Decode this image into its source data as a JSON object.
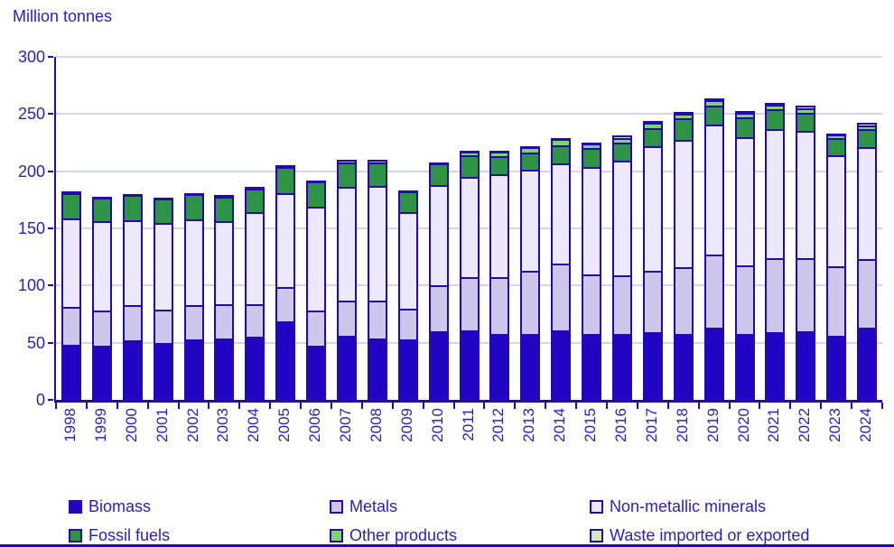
{
  "title": "Million tonnes",
  "colors": {
    "text": "#2d1dc0",
    "axis": "#2408b0",
    "grid": "#d7d4ee",
    "background": "#ffffff",
    "bar_border": "#2408b0"
  },
  "chart_data": {
    "type": "bar",
    "stacked": true,
    "title": "Million tonnes",
    "xlabel": "",
    "ylabel": "Million tonnes",
    "ylim": [
      0,
      300
    ],
    "yticks": [
      0,
      50,
      100,
      150,
      200,
      250,
      300
    ],
    "grid": true,
    "legend_position": "bottom",
    "categories": [
      "1998",
      "1999",
      "2000",
      "2001",
      "2002",
      "2003",
      "2004",
      "2005",
      "2006",
      "2007",
      "2008",
      "2009",
      "2010",
      "2011",
      "2012",
      "2013",
      "2014",
      "2015",
      "2016",
      "2017",
      "2018",
      "2019",
      "2020",
      "2021",
      "2022",
      "2023",
      "2024"
    ],
    "series": [
      {
        "name": "Biomass",
        "color": "#2306c4",
        "values": [
          48,
          47,
          52,
          50,
          53,
          54,
          55,
          69,
          47,
          56,
          54,
          53,
          60,
          61,
          58,
          58,
          61,
          58,
          58,
          59,
          58,
          63,
          58,
          59,
          60,
          56,
          63
        ]
      },
      {
        "name": "Metals",
        "color": "#cdc7ec",
        "values": [
          33,
          31,
          31,
          29,
          30,
          30,
          29,
          30,
          31,
          31,
          33,
          27,
          40,
          46,
          49,
          55,
          58,
          52,
          51,
          54,
          58,
          64,
          60,
          65,
          64,
          61,
          60
        ]
      },
      {
        "name": "Non-metallic minerals",
        "color": "#ebe9fb",
        "values": [
          78,
          78,
          74,
          76,
          75,
          72,
          80,
          82,
          91,
          99,
          100,
          84,
          88,
          88,
          90,
          88,
          88,
          94,
          100,
          109,
          111,
          114,
          112,
          113,
          111,
          97,
          98
        ]
      },
      {
        "name": "Fossil fuels",
        "color": "#2e9345",
        "values": [
          22,
          21,
          22,
          21,
          22,
          22,
          21,
          23,
          22,
          22,
          21,
          18,
          19,
          19,
          16,
          15,
          16,
          16,
          16,
          16,
          19,
          16,
          17,
          17,
          16,
          15,
          16
        ]
      },
      {
        "name": "Other products",
        "color": "#79d76a",
        "values": [
          1,
          1,
          1,
          1,
          1,
          1,
          1,
          1,
          1,
          2,
          2,
          1,
          1,
          3,
          4,
          5,
          5,
          4,
          4,
          4,
          4,
          5,
          4,
          4,
          4,
          3,
          3
        ]
      },
      {
        "name": "Waste imported or exported",
        "color": "#d5ebae",
        "values": [
          0,
          0,
          0,
          0,
          0,
          0,
          0,
          0,
          0,
          0,
          0,
          0,
          0,
          1,
          1,
          1,
          1,
          1,
          2,
          2,
          2,
          2,
          2,
          2,
          2,
          1,
          2
        ]
      }
    ],
    "totals": [
      182,
      178,
      180,
      177,
      181,
      179,
      186,
      205,
      192,
      210,
      210,
      183,
      208,
      218,
      218,
      222,
      229,
      225,
      231,
      244,
      252,
      264,
      253,
      260,
      257,
      233,
      242
    ]
  },
  "legend": {
    "columns": [
      [
        "Biomass",
        "Fossil fuels"
      ],
      [
        "Metals",
        "Other products"
      ],
      [
        "Non-metallic minerals",
        "Waste imported or exported"
      ]
    ]
  }
}
